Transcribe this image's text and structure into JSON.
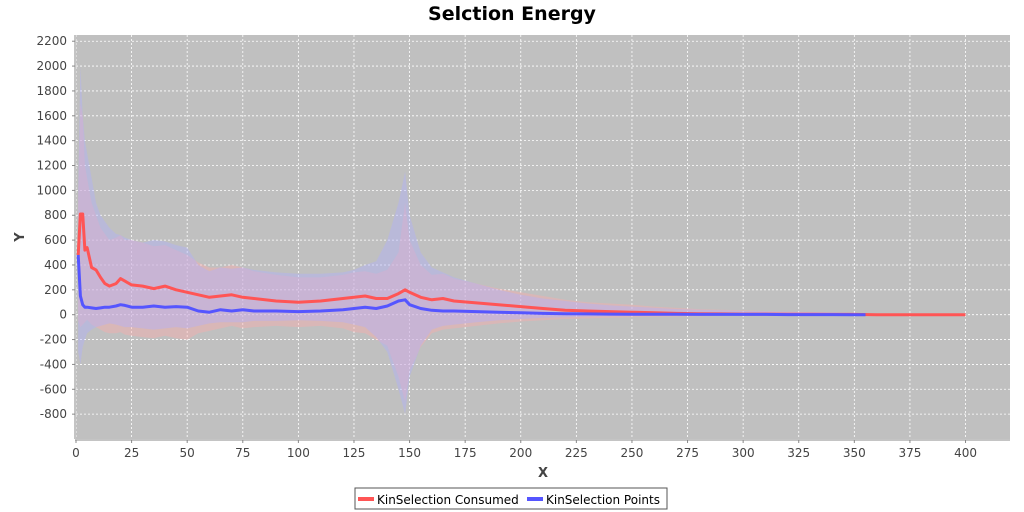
{
  "chart_data": {
    "type": "line",
    "title": "Selction Energy",
    "xlabel": "X",
    "ylabel": "Y",
    "xlim": [
      0,
      420
    ],
    "ylim": [
      -1000,
      2250
    ],
    "x_ticks": [
      0,
      25,
      50,
      75,
      100,
      125,
      150,
      175,
      200,
      225,
      250,
      275,
      300,
      325,
      350,
      375,
      400
    ],
    "y_ticks": [
      -800,
      -600,
      -400,
      -200,
      0,
      200,
      400,
      600,
      800,
      1000,
      1200,
      1400,
      1600,
      1800,
      2000,
      2200
    ],
    "grid": true,
    "legend_position": "bottom",
    "background_color": "#c0c0c0",
    "series": [
      {
        "name": "KinSelection Consumed",
        "color": "#ff5555",
        "band_color": "#ffaaaa",
        "x": [
          1,
          2,
          3,
          4,
          5,
          7,
          9,
          11,
          13,
          15,
          18,
          20,
          22,
          25,
          30,
          35,
          40,
          45,
          50,
          55,
          60,
          65,
          70,
          75,
          80,
          90,
          100,
          110,
          120,
          125,
          130,
          135,
          140,
          145,
          148,
          150,
          155,
          160,
          165,
          170,
          180,
          190,
          200,
          210,
          220,
          230,
          240,
          250,
          260,
          270,
          280,
          290,
          300,
          310,
          320,
          330,
          340,
          350,
          360,
          380,
          400
        ],
        "values": [
          480,
          810,
          810,
          520,
          540,
          380,
          360,
          300,
          250,
          230,
          250,
          290,
          270,
          240,
          230,
          210,
          230,
          200,
          180,
          160,
          140,
          150,
          160,
          140,
          130,
          110,
          100,
          110,
          130,
          140,
          150,
          130,
          130,
          170,
          200,
          180,
          140,
          120,
          130,
          110,
          95,
          80,
          65,
          50,
          35,
          30,
          25,
          20,
          15,
          10,
          8,
          6,
          5,
          5,
          4,
          3,
          2,
          2,
          0,
          0,
          0
        ],
        "band_upper": [
          900,
          1700,
          1600,
          1200,
          1100,
          900,
          800,
          700,
          650,
          600,
          620,
          640,
          600,
          600,
          580,
          550,
          560,
          520,
          480,
          420,
          380,
          380,
          400,
          380,
          350,
          320,
          300,
          300,
          320,
          340,
          350,
          330,
          360,
          500,
          900,
          600,
          400,
          320,
          330,
          290,
          250,
          210,
          180,
          150,
          120,
          100,
          90,
          80,
          65,
          55,
          45,
          40,
          35,
          30,
          25,
          22,
          18,
          15,
          0,
          0,
          0
        ],
        "band_lower": [
          -50,
          -100,
          -80,
          -60,
          -40,
          -80,
          -100,
          -120,
          -140,
          -150,
          -150,
          -140,
          -160,
          -170,
          -180,
          -190,
          -170,
          -190,
          -200,
          -150,
          -130,
          -110,
          -90,
          -110,
          -100,
          -90,
          -100,
          -90,
          -110,
          -140,
          -150,
          -200,
          -250,
          -500,
          -700,
          -450,
          -260,
          -150,
          -120,
          -110,
          -90,
          -70,
          -55,
          -45,
          -35,
          -30,
          -25,
          -20,
          -18,
          -15,
          -12,
          -10,
          -8,
          -7,
          -6,
          -5,
          -4,
          -3,
          0,
          0,
          0
        ]
      },
      {
        "name": "KinSelection Points",
        "color": "#5555ff",
        "band_color": "#b0b0ff",
        "x": [
          1,
          2,
          3,
          4,
          5,
          7,
          9,
          11,
          13,
          15,
          18,
          20,
          22,
          25,
          30,
          35,
          40,
          45,
          50,
          55,
          60,
          65,
          70,
          75,
          80,
          90,
          100,
          110,
          120,
          125,
          130,
          135,
          140,
          145,
          148,
          150,
          155,
          160,
          165,
          170,
          180,
          190,
          200,
          210,
          220,
          230,
          240,
          250,
          260,
          270,
          280,
          290,
          300,
          310,
          320,
          330,
          340,
          350,
          355
        ],
        "values": [
          480,
          150,
          80,
          60,
          60,
          55,
          50,
          55,
          60,
          60,
          70,
          80,
          75,
          60,
          60,
          70,
          60,
          65,
          60,
          30,
          20,
          40,
          30,
          40,
          30,
          30,
          25,
          30,
          40,
          50,
          60,
          50,
          70,
          110,
          120,
          80,
          50,
          35,
          30,
          30,
          25,
          20,
          15,
          10,
          8,
          6,
          5,
          4,
          3,
          3,
          2,
          2,
          2,
          2,
          1,
          1,
          1,
          0,
          0
        ],
        "band_upper": [
          1000,
          2000,
          1600,
          1400,
          1300,
          1100,
          900,
          800,
          750,
          700,
          650,
          640,
          620,
          600,
          580,
          600,
          590,
          560,
          540,
          400,
          350,
          380,
          370,
          380,
          360,
          340,
          330,
          330,
          340,
          360,
          400,
          430,
          600,
          900,
          1150,
          800,
          500,
          380,
          340,
          300,
          250,
          200,
          160,
          130,
          110,
          90,
          75,
          65,
          55,
          45,
          40,
          35,
          30,
          28,
          25,
          22,
          20,
          15,
          0
        ],
        "band_lower": [
          -300,
          -400,
          -260,
          -200,
          -150,
          -120,
          -100,
          -90,
          -80,
          -70,
          -80,
          -90,
          -100,
          -100,
          -110,
          -120,
          -110,
          -100,
          -110,
          -90,
          -70,
          -60,
          -60,
          -60,
          -50,
          -50,
          -45,
          -50,
          -60,
          -80,
          -100,
          -180,
          -300,
          -600,
          -800,
          -500,
          -250,
          -120,
          -90,
          -80,
          -60,
          -45,
          -35,
          -25,
          -20,
          -15,
          -12,
          -10,
          -8,
          -7,
          -6,
          -5,
          -4,
          -3,
          -3,
          -2,
          -2,
          -1,
          0
        ]
      }
    ]
  }
}
